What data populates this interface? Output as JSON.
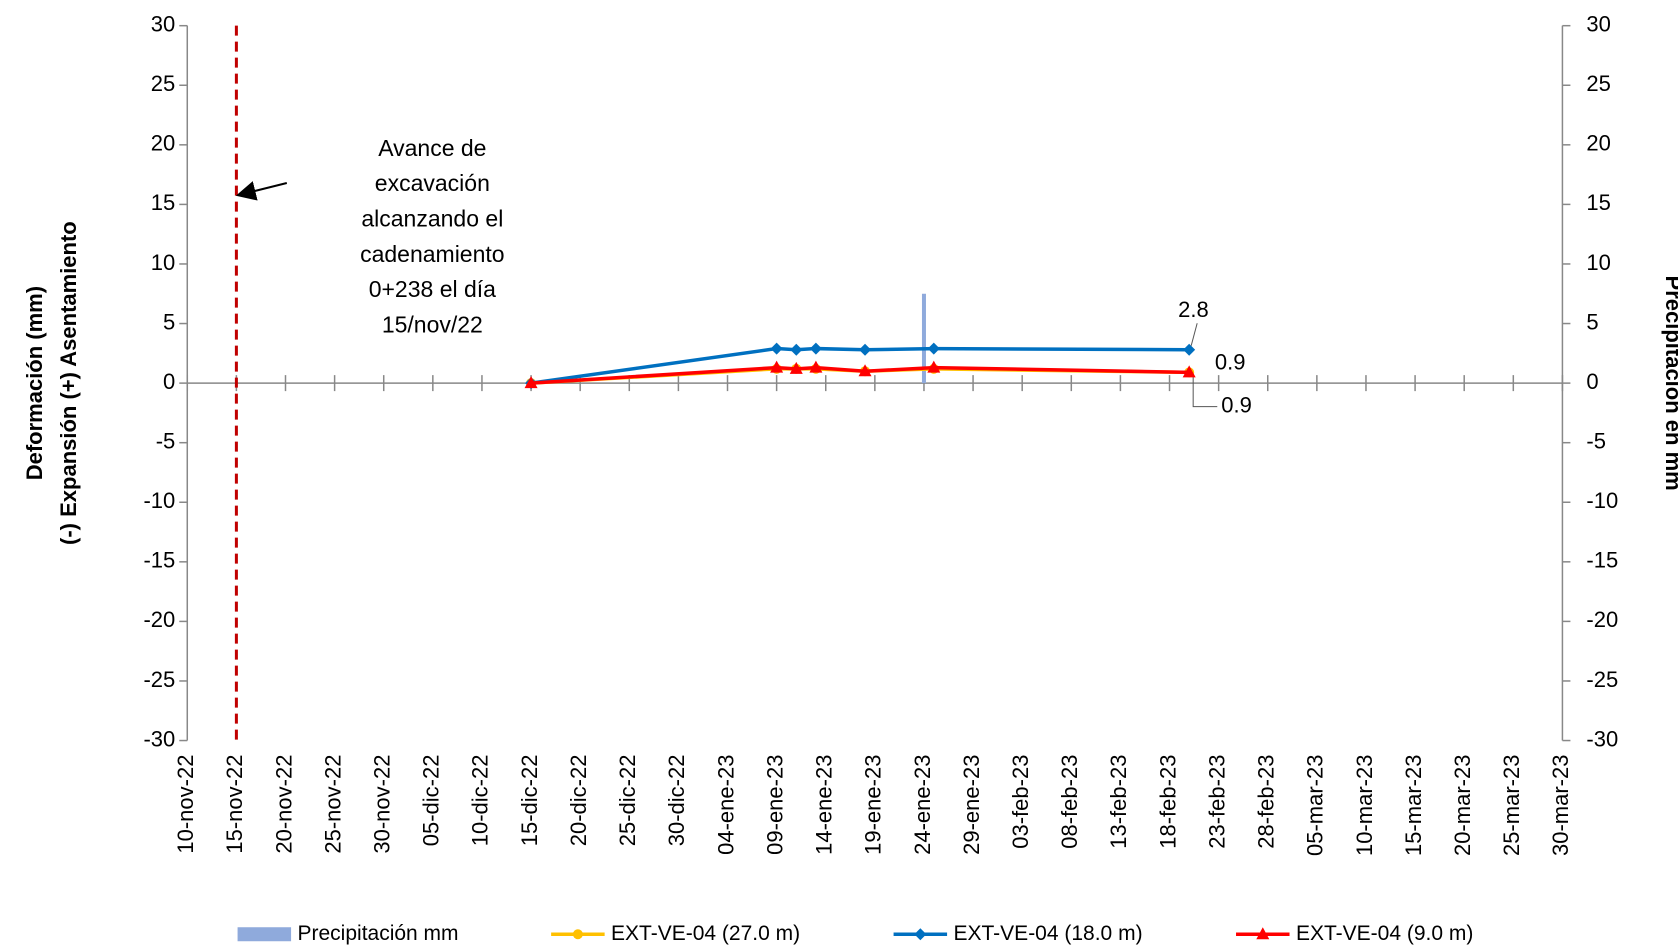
{
  "chart_data": {
    "type": "line",
    "ylabel": [
      "Deformación (mm)",
      "(-) Expansión    (+) Asentamiento"
    ],
    "y2label": "Precipitación en mm",
    "xlim": [
      "2022-11-10",
      "2023-03-30"
    ],
    "xticks": [
      {
        "value": "2022-11-10",
        "label": "10-nov-22"
      },
      {
        "value": "2022-11-15",
        "label": "15-nov-22"
      },
      {
        "value": "2022-11-20",
        "label": "20-nov-22"
      },
      {
        "value": "2022-11-25",
        "label": "25-nov-22"
      },
      {
        "value": "2022-11-30",
        "label": "30-nov-22"
      },
      {
        "value": "2022-12-05",
        "label": "05-dic-22"
      },
      {
        "value": "2022-12-10",
        "label": "10-dic-22"
      },
      {
        "value": "2022-12-15",
        "label": "15-dic-22"
      },
      {
        "value": "2022-12-20",
        "label": "20-dic-22"
      },
      {
        "value": "2022-12-25",
        "label": "25-dic-22"
      },
      {
        "value": "2022-12-30",
        "label": "30-dic-22"
      },
      {
        "value": "2023-01-04",
        "label": "04-ene-23"
      },
      {
        "value": "2023-01-09",
        "label": "09-ene-23"
      },
      {
        "value": "2023-01-14",
        "label": "14-ene-23"
      },
      {
        "value": "2023-01-19",
        "label": "19-ene-23"
      },
      {
        "value": "2023-01-24",
        "label": "24-ene-23"
      },
      {
        "value": "2023-01-29",
        "label": "29-ene-23"
      },
      {
        "value": "2023-02-03",
        "label": "03-feb-23"
      },
      {
        "value": "2023-02-08",
        "label": "08-feb-23"
      },
      {
        "value": "2023-02-13",
        "label": "13-feb-23"
      },
      {
        "value": "2023-02-18",
        "label": "18-feb-23"
      },
      {
        "value": "2023-02-23",
        "label": "23-feb-23"
      },
      {
        "value": "2023-02-28",
        "label": "28-feb-23"
      },
      {
        "value": "2023-03-05",
        "label": "05-mar-23"
      },
      {
        "value": "2023-03-10",
        "label": "10-mar-23"
      },
      {
        "value": "2023-03-15",
        "label": "15-mar-23"
      },
      {
        "value": "2023-03-20",
        "label": "20-mar-23"
      },
      {
        "value": "2023-03-25",
        "label": "25-mar-23"
      },
      {
        "value": "2023-03-30",
        "label": "30-mar-23"
      }
    ],
    "ylim": [
      -30,
      30
    ],
    "yticks": [
      -30,
      -25,
      -20,
      -15,
      -10,
      -5,
      0,
      5,
      10,
      15,
      20,
      25,
      30
    ],
    "y2lim": [
      -30,
      30
    ],
    "y2ticks": [
      -30,
      -25,
      -20,
      -15,
      -10,
      -5,
      0,
      5,
      10,
      15,
      20,
      25,
      30
    ],
    "grid": false,
    "bars": {
      "name": "Precipitación mm",
      "color": "#8faadc",
      "axis": "y2",
      "x": [
        "2023-01-24"
      ],
      "values": [
        7.5
      ]
    },
    "x": [
      "2022-12-15",
      "2023-01-09",
      "2023-01-11",
      "2023-01-13",
      "2023-01-18",
      "2023-01-25",
      "2023-02-20"
    ],
    "series": [
      {
        "name": "EXT-VE-04 (27.0 m)",
        "color": "#ffc000",
        "marker": "circle",
        "values": [
          0,
          1.2,
          1.2,
          1.2,
          1.0,
          1.2,
          0.9
        ],
        "show_last_label": true
      },
      {
        "name": "EXT-VE-04 (18.0 m)",
        "color": "#0070c0",
        "marker": "diamond",
        "values": [
          0,
          2.9,
          2.8,
          2.9,
          2.8,
          2.9,
          2.8
        ],
        "show_last_label": true
      },
      {
        "name": "EXT-VE-04 (9.0 m)",
        "color": "#ff0000",
        "marker": "triangle",
        "values": [
          0,
          1.3,
          1.2,
          1.3,
          1.0,
          1.3,
          0.9
        ],
        "show_last_label": true
      }
    ],
    "vline": {
      "x": "2022-11-15",
      "color": "#c00000"
    },
    "annotation": [
      "Avance de",
      "excavación",
      "alcanzando el",
      "cadenamiento",
      "0+238 el día",
      "15/nov/22"
    ]
  }
}
